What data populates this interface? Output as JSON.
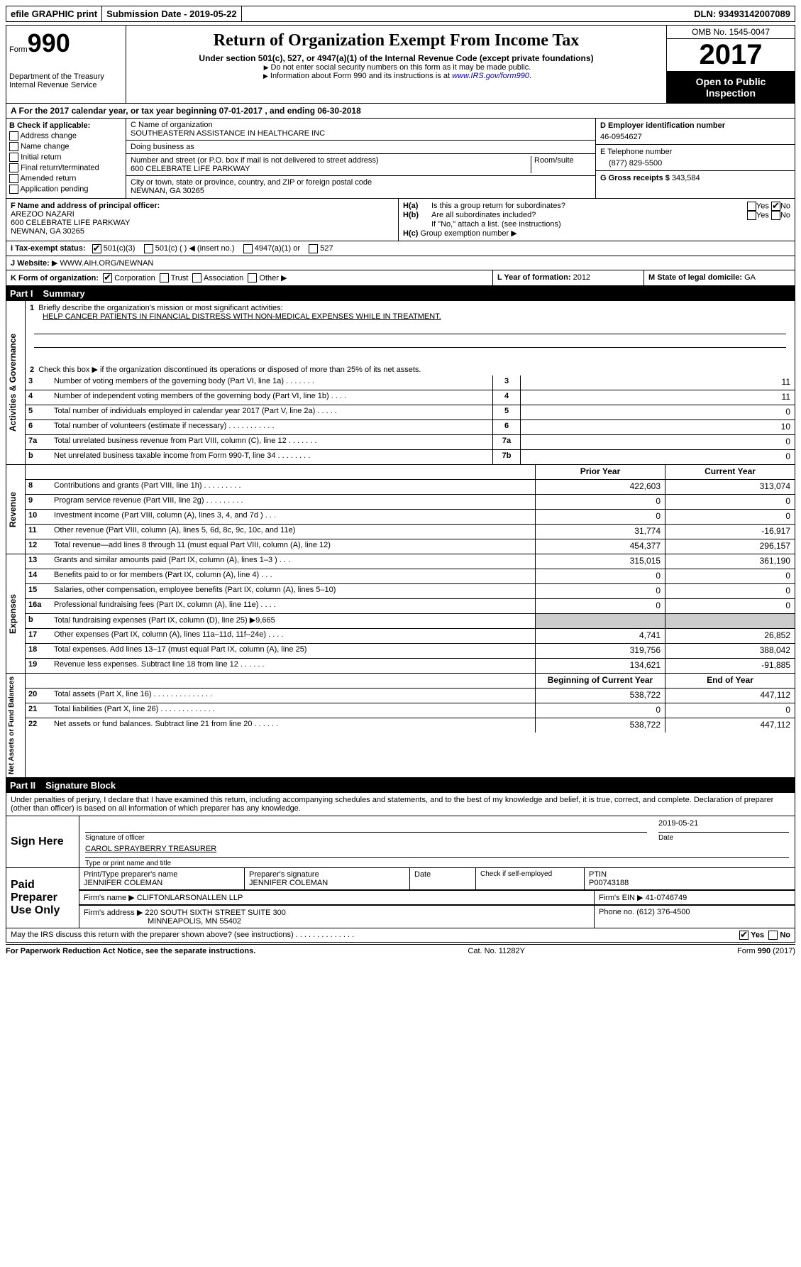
{
  "topbar": {
    "efile": "efile GRAPHIC print",
    "submission": "Submission Date - 2019-05-22",
    "dln": "DLN: 93493142007089"
  },
  "header": {
    "form_label": "Form",
    "form_number": "990",
    "dept1": "Department of the Treasury",
    "dept2": "Internal Revenue Service",
    "title": "Return of Organization Exempt From Income Tax",
    "subtitle": "Under section 501(c), 527, or 4947(a)(1) of the Internal Revenue Code (except private foundations)",
    "note1": "Do not enter social security numbers on this form as it may be made public.",
    "note2_pre": "Information about Form 990 and its instructions is at ",
    "note2_link": "www.IRS.gov/form990",
    "omb": "OMB No. 1545-0047",
    "year": "2017",
    "open1": "Open to Public",
    "open2": "Inspection"
  },
  "rowA": "A  For the 2017 calendar year, or tax year beginning 07-01-2017   , and ending 06-30-2018",
  "boxB": {
    "title": "B Check if applicable:",
    "items": [
      "Address change",
      "Name change",
      "Initial return",
      "Final return/terminated",
      "Amended return",
      "Application pending"
    ]
  },
  "boxC": {
    "name_label": "C Name of organization",
    "name": "SOUTHEASTERN ASSISTANCE IN HEALTHCARE INC",
    "dba_label": "Doing business as",
    "dba": "",
    "street_label": "Number and street (or P.O. box if mail is not delivered to street address)",
    "room_label": "Room/suite",
    "street": "600 CELEBRATE LIFE PARKWAY",
    "city_label": "City or town, state or province, country, and ZIP or foreign postal code",
    "city": "NEWNAN, GA  30265"
  },
  "boxDE": {
    "d_label": "D Employer identification number",
    "d_val": "46-0954627",
    "e_label": "E Telephone number",
    "e_val": "(877) 829-5500",
    "g_label": "G Gross receipts $",
    "g_val": "343,584"
  },
  "boxF": {
    "label": "F  Name and address of principal officer:",
    "name": "AREZOO NAZARI",
    "addr1": "600 CELEBRATE LIFE PARKWAY",
    "addr2": "NEWNAN, GA  30265"
  },
  "boxH": {
    "ha": "Is this a group return for subordinates?",
    "hb": "Are all subordinates included?",
    "hnote": "If \"No,\" attach a list. (see instructions)",
    "hc": "Group exemption number",
    "yes": "Yes",
    "no": "No",
    "ha_label": "H(a)",
    "hb_label": "H(b)",
    "hc_label": "H(c)"
  },
  "rowI": {
    "label": "I  Tax-exempt status:",
    "opt1": "501(c)(3)",
    "opt2": "501(c) (   )",
    "opt2b": "(insert no.)",
    "opt3": "4947(a)(1) or",
    "opt4": "527"
  },
  "rowJ": {
    "label": "J  Website:",
    "val": "WWW.AIH.ORG/NEWNAN"
  },
  "rowK": {
    "label": "K Form of organization:",
    "opts": [
      "Corporation",
      "Trust",
      "Association",
      "Other"
    ]
  },
  "rowL": {
    "label": "L Year of formation:",
    "val": "2012"
  },
  "rowM": {
    "label": "M State of legal domicile:",
    "val": "GA"
  },
  "parts": {
    "p1": "Part I",
    "p1_title": "Summary",
    "p2": "Part II",
    "p2_title": "Signature Block"
  },
  "q1": {
    "label": "Briefly describe the organization's mission or most significant activities:",
    "val": "HELP CANCER PATIENTS IN FINANCIAL DISTRESS WITH NON-MEDICAL EXPENSES WHILE IN TREATMENT."
  },
  "q2": "Check this box ▶        if the organization discontinued its operations or disposed of more than 25% of its net assets.",
  "lines_gov": [
    {
      "n": "3",
      "desc": "Number of voting members of the governing body (Part VI, line 1a)   .   .   .   .   .   .   .",
      "ln": "3",
      "v": "11"
    },
    {
      "n": "4",
      "desc": "Number of independent voting members of the governing body (Part VI, line 1b)    .   .   .   .",
      "ln": "4",
      "v": "11"
    },
    {
      "n": "5",
      "desc": "Total number of individuals employed in calendar year 2017 (Part V, line 2a)   .   .   .   .   .",
      "ln": "5",
      "v": "0"
    },
    {
      "n": "6",
      "desc": "Total number of volunteers (estimate if necessary)   .   .   .   .   .   .   .   .   .   .   .",
      "ln": "6",
      "v": "10"
    },
    {
      "n": "7a",
      "desc": "Total unrelated business revenue from Part VIII, column (C), line 12   .   .   .   .   .   .   .",
      "ln": "7a",
      "v": "0"
    },
    {
      "n": "b",
      "desc": "Net unrelated business taxable income from Form 990-T, line 34   .   .   .   .   .   .   .   .",
      "ln": "7b",
      "v": "0"
    }
  ],
  "cols": {
    "prior": "Prior Year",
    "current": "Current Year",
    "boy": "Beginning of Current Year",
    "eoy": "End of Year"
  },
  "lines_rev": [
    {
      "n": "8",
      "desc": "Contributions and grants (Part VIII, line 1h)   .   .   .   .   .   .   .   .   .",
      "p": "422,603",
      "c": "313,074"
    },
    {
      "n": "9",
      "desc": "Program service revenue (Part VIII, line 2g)   .   .   .   .   .   .   .   .   .",
      "p": "0",
      "c": "0"
    },
    {
      "n": "10",
      "desc": "Investment income (Part VIII, column (A), lines 3, 4, and 7d )   .   .   .",
      "p": "0",
      "c": "0"
    },
    {
      "n": "11",
      "desc": "Other revenue (Part VIII, column (A), lines 5, 6d, 8c, 9c, 10c, and 11e)",
      "p": "31,774",
      "c": "-16,917"
    },
    {
      "n": "12",
      "desc": "Total revenue—add lines 8 through 11 (must equal Part VIII, column (A), line 12)",
      "p": "454,377",
      "c": "296,157"
    }
  ],
  "lines_exp": [
    {
      "n": "13",
      "desc": "Grants and similar amounts paid (Part IX, column (A), lines 1–3 )   .   .   .",
      "p": "315,015",
      "c": "361,190"
    },
    {
      "n": "14",
      "desc": "Benefits paid to or for members (Part IX, column (A), line 4)   .   .   .",
      "p": "0",
      "c": "0"
    },
    {
      "n": "15",
      "desc": "Salaries, other compensation, employee benefits (Part IX, column (A), lines 5–10)",
      "p": "0",
      "c": "0"
    },
    {
      "n": "16a",
      "desc": "Professional fundraising fees (Part IX, column (A), line 11e)   .   .   .   .",
      "p": "0",
      "c": "0"
    },
    {
      "n": "b",
      "desc": "Total fundraising expenses (Part IX, column (D), line 25) ▶9,665",
      "p": "",
      "c": "",
      "shaded": true
    },
    {
      "n": "17",
      "desc": "Other expenses (Part IX, column (A), lines 11a–11d, 11f–24e)   .   .   .   .",
      "p": "4,741",
      "c": "26,852"
    },
    {
      "n": "18",
      "desc": "Total expenses. Add lines 13–17 (must equal Part IX, column (A), line 25)",
      "p": "319,756",
      "c": "388,042"
    },
    {
      "n": "19",
      "desc": "Revenue less expenses. Subtract line 18 from line 12   .   .   .   .   .   .",
      "p": "134,621",
      "c": "-91,885"
    }
  ],
  "lines_net": [
    {
      "n": "20",
      "desc": "Total assets (Part X, line 16)  .   .   .   .   .   .   .   .   .   .   .   .   .   .",
      "p": "538,722",
      "c": "447,112"
    },
    {
      "n": "21",
      "desc": "Total liabilities (Part X, line 26)  .   .   .   .   .   .   .   .   .   .   .   .   .",
      "p": "0",
      "c": "0"
    },
    {
      "n": "22",
      "desc": "Net assets or fund balances. Subtract line 21 from line 20 .   .   .   .   .   .",
      "p": "538,722",
      "c": "447,112"
    }
  ],
  "vtabs": {
    "gov": "Activities & Governance",
    "rev": "Revenue",
    "exp": "Expenses",
    "net": "Net Assets or Fund Balances"
  },
  "sig": {
    "declaration": "Under penalties of perjury, I declare that I have examined this return, including accompanying schedules and statements, and to the best of my knowledge and belief, it is true, correct, and complete. Declaration of preparer (other than officer) is based on all information of which preparer has any knowledge.",
    "sign_here": "Sign Here",
    "sig_officer": "Signature of officer",
    "date": "Date",
    "date_val": "2019-05-21",
    "typed": "CAROL SPRAYBERRY TREASURER",
    "typed_label": "Type or print name and title",
    "paid": "Paid Preparer Use Only",
    "prep_name_label": "Print/Type preparer's name",
    "prep_name": "JENNIFER COLEMAN",
    "prep_sig_label": "Preparer's signature",
    "prep_sig": "JENNIFER COLEMAN",
    "prep_date_label": "Date",
    "check_label": "Check        if self-employed",
    "ptin_label": "PTIN",
    "ptin": "P00743188",
    "firm_name_label": "Firm's name    ▶",
    "firm_name": "CLIFTONLARSONALLEN LLP",
    "firm_ein_label": "Firm's EIN ▶",
    "firm_ein": "41-0746749",
    "firm_addr_label": "Firm's address ▶",
    "firm_addr1": "220 SOUTH SIXTH STREET SUITE 300",
    "firm_addr2": "MINNEAPOLIS, MN  55402",
    "phone_label": "Phone no.",
    "phone": "(612) 376-4500",
    "discuss": "May the IRS discuss this return with the preparer shown above? (see instructions)   .   .   .   .   .   .   .   .   .   .   .   .   .   .",
    "yes": "Yes",
    "no": "No"
  },
  "footer": {
    "left": "For Paperwork Reduction Act Notice, see the separate instructions.",
    "mid": "Cat. No. 11282Y",
    "right": "Form 990 (2017)"
  }
}
